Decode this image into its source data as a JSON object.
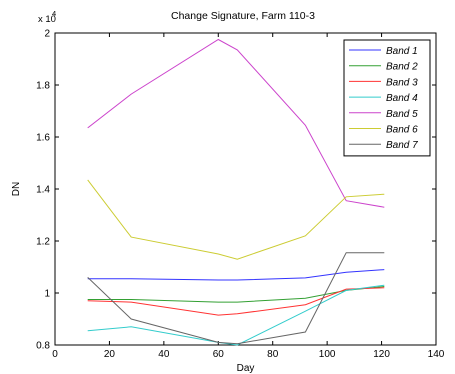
{
  "chart_data": {
    "type": "line",
    "title": "Change Signature, Farm 110-3",
    "xlabel": "Day",
    "ylabel": "DN",
    "y_multiplier_label": "x 10",
    "y_multiplier_exp": "4",
    "xlim": [
      0,
      140
    ],
    "ylim": [
      0.8,
      2.0
    ],
    "x_ticks": [
      0,
      20,
      40,
      60,
      80,
      100,
      120,
      140
    ],
    "x_tick_labels": [
      "0",
      "20",
      "40",
      "60",
      "80",
      "100",
      "120",
      "140"
    ],
    "y_ticks": [
      0.8,
      1.0,
      1.2,
      1.4,
      1.6,
      1.8,
      2.0
    ],
    "y_tick_labels": [
      "0.8",
      "1",
      "1.2",
      "1.4",
      "1.6",
      "1.8",
      "2"
    ],
    "grid": false,
    "legend_position": "top-right",
    "x": [
      12,
      28,
      60,
      67,
      92,
      107,
      121
    ],
    "series": [
      {
        "name": "Band 1",
        "color": "#3333ff",
        "values": [
          1.055,
          1.055,
          1.05,
          1.05,
          1.058,
          1.08,
          1.09
        ]
      },
      {
        "name": "Band 2",
        "color": "#33a033",
        "values": [
          0.975,
          0.975,
          0.965,
          0.965,
          0.98,
          1.01,
          1.025
        ]
      },
      {
        "name": "Band 3",
        "color": "#ff3333",
        "values": [
          0.97,
          0.965,
          0.915,
          0.92,
          0.955,
          1.015,
          1.02
        ]
      },
      {
        "name": "Band 4",
        "color": "#33cccc",
        "values": [
          0.855,
          0.87,
          0.81,
          0.8,
          0.93,
          1.01,
          1.03
        ]
      },
      {
        "name": "Band 5",
        "color": "#cc44cc",
        "values": [
          1.635,
          1.765,
          1.975,
          1.935,
          1.645,
          1.355,
          1.33
        ]
      },
      {
        "name": "Band 6",
        "color": "#cccc33",
        "values": [
          1.435,
          1.215,
          1.15,
          1.13,
          1.22,
          1.37,
          1.38
        ]
      },
      {
        "name": "Band 7",
        "color": "#666666",
        "values": [
          1.06,
          0.9,
          0.81,
          0.805,
          0.85,
          1.155,
          1.155
        ]
      }
    ]
  }
}
